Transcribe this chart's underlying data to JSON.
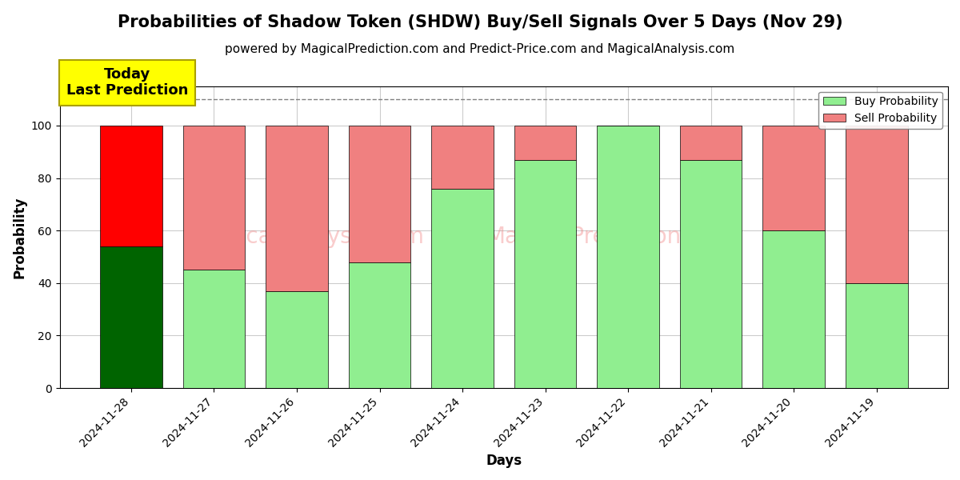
{
  "title": "Probabilities of Shadow Token (SHDW) Buy/Sell Signals Over 5 Days (Nov 29)",
  "subtitle": "powered by MagicalPrediction.com and Predict-Price.com and MagicalAnalysis.com",
  "xlabel": "Days",
  "ylabel": "Probability",
  "days": [
    "2024-11-28",
    "2024-11-27",
    "2024-11-26",
    "2024-11-25",
    "2024-11-24",
    "2024-11-23",
    "2024-11-22",
    "2024-11-21",
    "2024-11-20",
    "2024-11-19"
  ],
  "buy_values": [
    54,
    45,
    37,
    48,
    76,
    87,
    100,
    87,
    60,
    40
  ],
  "sell_values": [
    46,
    55,
    63,
    52,
    24,
    13,
    0,
    13,
    40,
    60
  ],
  "today_buy_color": "#006400",
  "today_sell_color": "#FF0000",
  "buy_color": "#90EE90",
  "sell_color": "#F08080",
  "today_annotation_bg": "#FFFF00",
  "today_annotation_text": "Today\nLast Prediction",
  "dashed_line_y": 110,
  "ylim": [
    0,
    115
  ],
  "yticks": [
    0,
    20,
    40,
    60,
    80,
    100
  ],
  "bar_width": 0.75,
  "background_color": "#ffffff",
  "grid_color": "#cccccc",
  "title_fontsize": 15,
  "subtitle_fontsize": 11,
  "axis_label_fontsize": 12,
  "tick_fontsize": 10
}
